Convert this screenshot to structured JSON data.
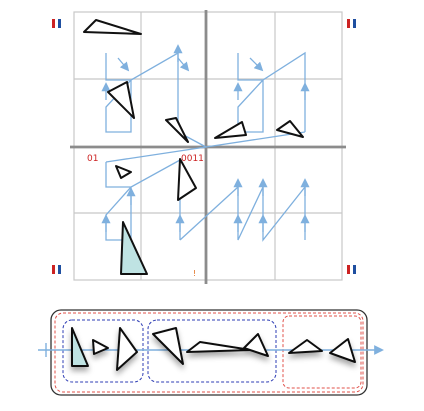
{
  "title": "",
  "grid": {
    "divisions": 4,
    "corner_marker_colors": [
      "#cc2222",
      "#1f4fa0"
    ]
  },
  "labels": {
    "left_middle": "01",
    "center": "0011",
    "bottom_marker": "!"
  },
  "colors": {
    "grid_line": "#c8c8c8",
    "axis_line": "#8c8c8c",
    "flow_path": "#7fb0de",
    "triangle_stroke": "#111111",
    "triangle_highlight_fill": "#bfe3e3",
    "outer_box": "#333333",
    "dashed_blue": "#2d3cb4",
    "dashed_red": "#e0504a"
  },
  "sequence_panel": {
    "groups": [
      "blue-group-1",
      "blue-group-2",
      "red-group"
    ],
    "triangle_count": 7
  }
}
